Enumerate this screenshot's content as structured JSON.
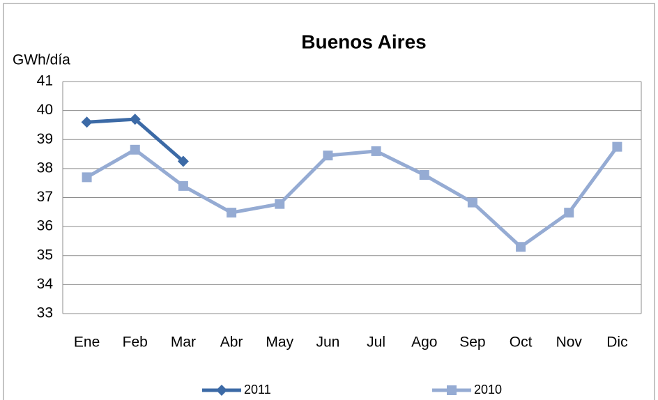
{
  "chart_data": {
    "type": "line",
    "title": "Buenos Aires",
    "ylabel": "GWh/día",
    "categories": [
      "Ene",
      "Feb",
      "Mar",
      "Abr",
      "May",
      "Jun",
      "Jul",
      "Ago",
      "Sep",
      "Oct",
      "Nov",
      "Dic"
    ],
    "series": [
      {
        "name": "2011",
        "color": "#3c6aa6",
        "marker": "diamond",
        "values": [
          39.6,
          39.7,
          38.25,
          null,
          null,
          null,
          null,
          null,
          null,
          null,
          null,
          null
        ]
      },
      {
        "name": "2010",
        "color": "#95abd3",
        "marker": "square",
        "values": [
          37.7,
          38.65,
          37.4,
          36.48,
          36.78,
          38.45,
          38.6,
          37.78,
          36.83,
          35.3,
          36.48,
          38.75
        ]
      }
    ],
    "ylim": [
      33,
      41
    ],
    "yticks": [
      33,
      34,
      35,
      36,
      37,
      38,
      39,
      40,
      41
    ],
    "grid": true,
    "legend": "bottom"
  }
}
